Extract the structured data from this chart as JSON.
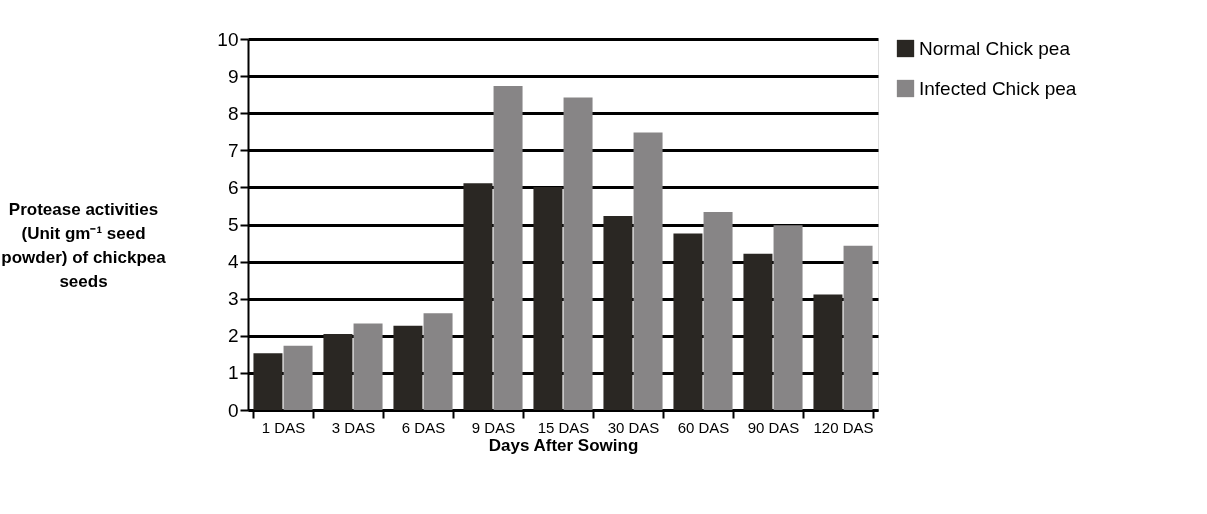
{
  "chart_data": {
    "type": "bar",
    "xlabel": "Days After Sowing",
    "ylabel": "Protease activities (Unit gm⁻¹ seed powder) of chickpea seeds",
    "categories": [
      "1 DAS",
      "3 DAS",
      "6 DAS",
      "9 DAS",
      "15 DAS",
      "30 DAS",
      "60 DAS",
      "90 DAS",
      "120 DAS"
    ],
    "series": [
      {
        "name": "Normal Chick pea",
        "color": "#2a2723",
        "values": [
          1.53,
          2.05,
          2.27,
          6.11,
          6.01,
          5.23,
          4.76,
          4.21,
          3.11
        ]
      },
      {
        "name": "Infected Chick pea",
        "color": "#878586",
        "values": [
          1.73,
          2.33,
          2.61,
          8.73,
          8.42,
          7.48,
          5.34,
          4.98,
          4.43
        ]
      }
    ],
    "ylim": [
      0,
      10
    ],
    "yticks": [
      0,
      1,
      2,
      3,
      4,
      5,
      6,
      7,
      8,
      9,
      10
    ],
    "grid": "y",
    "legend": "right"
  }
}
